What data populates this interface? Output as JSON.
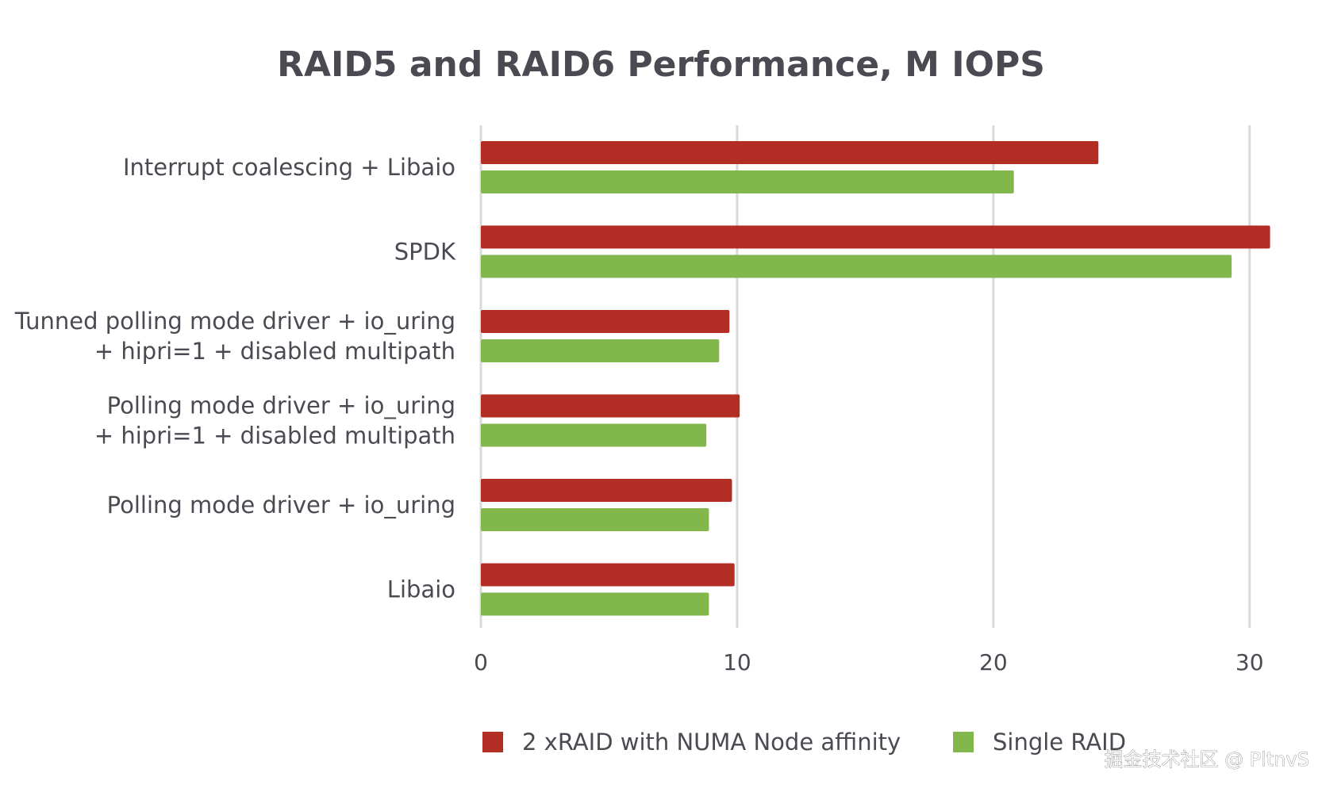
{
  "chart_data": {
    "type": "bar",
    "orientation": "horizontal",
    "title": "RAID5 and RAID6 Performance, M IOPS",
    "categories": [
      [
        "Interrupt coalescing + Libaio"
      ],
      [
        "SPDK"
      ],
      [
        "Tunned polling mode driver + io_uring",
        "+ hipri=1 + disabled multipath"
      ],
      [
        "Polling mode driver + io_uring",
        "+ hipri=1 + disabled multipath"
      ],
      [
        "Polling mode driver + io_uring"
      ],
      [
        "Libaio"
      ]
    ],
    "series": [
      {
        "name": "2 xRAID with NUMA Node affinity",
        "color": "#b22d24",
        "values": [
          24.1,
          30.8,
          9.7,
          10.1,
          9.8,
          9.9
        ]
      },
      {
        "name": "Single RAID",
        "color": "#82b74b",
        "values": [
          20.8,
          29.3,
          9.3,
          8.8,
          8.9,
          8.9
        ]
      }
    ],
    "xlim": [
      0,
      31
    ],
    "xticks": [
      "0",
      "10",
      "20",
      "30"
    ],
    "xtick_values": [
      0,
      10,
      20,
      30
    ],
    "xlabel": "",
    "ylabel": "",
    "grid": true,
    "legend_position": "bottom-center"
  },
  "watermark": "掘金技术社区 @ PltnvS",
  "colors": {
    "grid": "#d9d9d9",
    "text": "#4a4a52"
  }
}
